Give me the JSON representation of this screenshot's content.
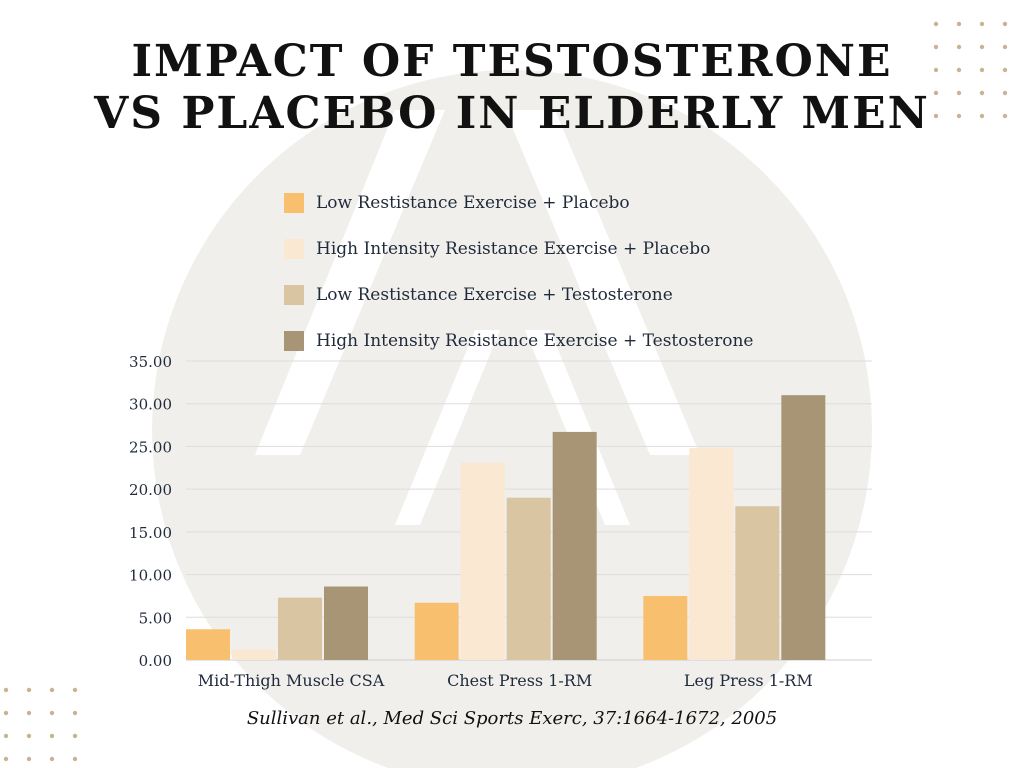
{
  "title": {
    "line1": "IMPACT OF TESTOSTERONE",
    "line2": "VS PLACEBO IN ELDERLY MEN"
  },
  "citation": "Sullivan et al., Med Sci Sports Exerc, 37:1664-1672, 2005",
  "colors": {
    "background_logo_circle": "#f1efec",
    "decorative_dots": "#c8b48e",
    "gridline": "#dddddd",
    "text": "#1f2a3a"
  },
  "chart_data": {
    "type": "bar",
    "categories": [
      "Mid-Thigh Muscle CSA",
      "Chest Press 1-RM",
      "Leg Press 1-RM"
    ],
    "series": [
      {
        "name": "Low Restistance Exercise + Placebo",
        "color": "#f8c06e",
        "values": [
          3.6,
          6.7,
          7.5
        ]
      },
      {
        "name": "High Intensity Resistance Exercise + Placebo",
        "color": "#fbe8d2",
        "values": [
          1.2,
          23.1,
          24.8
        ]
      },
      {
        "name": "Low Restistance Exercise + Testosterone",
        "color": "#d9c5a2",
        "values": [
          7.3,
          19.0,
          18.0
        ]
      },
      {
        "name": "High Intensity Resistance Exercise + Testosterone",
        "color": "#a89576",
        "values": [
          8.6,
          26.7,
          31.0
        ]
      }
    ],
    "yticks": [
      "0.00",
      "5.00",
      "10.00",
      "15.00",
      "20.00",
      "25.00",
      "30.00",
      "35.00"
    ],
    "ylim": [
      0,
      35
    ],
    "grid": true,
    "legend_position": "top"
  }
}
